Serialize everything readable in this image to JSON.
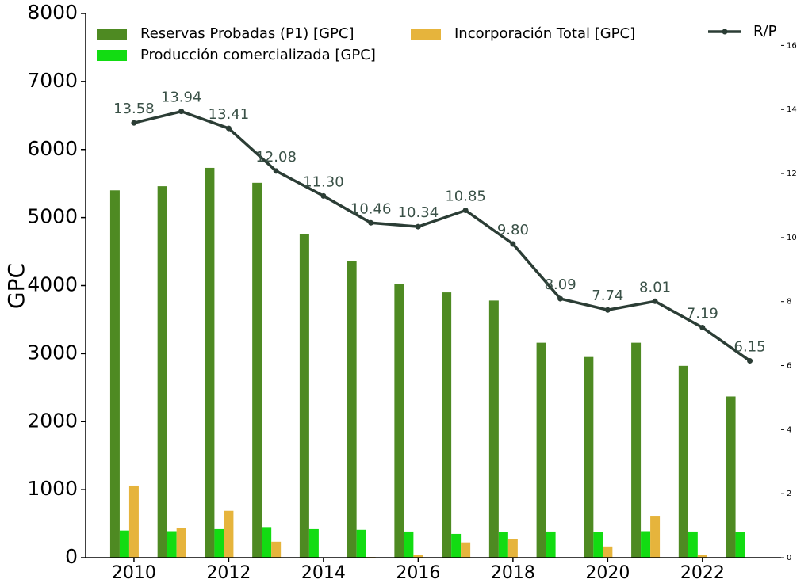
{
  "chart_data": {
    "type": "bar",
    "y_label": "GPC",
    "x": [
      2010,
      2011,
      2012,
      2013,
      2014,
      2015,
      2016,
      2017,
      2018,
      2019,
      2020,
      2021,
      2022,
      2023
    ],
    "xlim": [
      2008.98,
      2023.66
    ],
    "xticks": [
      2010,
      2012,
      2014,
      2016,
      2018,
      2020,
      2022
    ],
    "ylim": [
      0,
      8000
    ],
    "yticks": [
      0,
      1000,
      2000,
      3000,
      4000,
      5000,
      6000,
      7000,
      8000
    ],
    "y2lim": [
      0,
      17
    ],
    "y2ticks": [
      0,
      2,
      4,
      6,
      8,
      10,
      12,
      14,
      16
    ],
    "series": [
      {
        "name": "Reservas Probadas (P1) [GPC]",
        "color": "#4e8a22",
        "values": [
          5400,
          5460,
          5730,
          5510,
          4760,
          4360,
          4020,
          3900,
          3780,
          3160,
          2950,
          3160,
          2820,
          2370
        ]
      },
      {
        "name": "Producción comercializada [GPC]",
        "color": "#12dc12",
        "values": [
          400,
          390,
          420,
          450,
          420,
          410,
          385,
          350,
          380,
          385,
          375,
          390,
          385,
          380
        ]
      },
      {
        "name": "Incorporación Total [GPC]",
        "color": "#e6b43c",
        "values": [
          1060,
          440,
          690,
          235,
          0,
          10,
          45,
          225,
          270,
          0,
          165,
          605,
          40,
          0
        ]
      },
      {
        "name": "R/P",
        "type": "line",
        "axis": "y2",
        "color": "#2b3d35",
        "values": [
          13.58,
          13.94,
          13.41,
          12.08,
          11.3,
          10.46,
          10.34,
          10.85,
          9.8,
          8.09,
          7.74,
          8.01,
          7.19,
          6.15
        ],
        "value_labels": [
          "13.58",
          "13.94",
          "13.41",
          "12.08",
          "11.30",
          "10.46",
          "10.34",
          "10.85",
          "9.80",
          "8.09",
          "7.74",
          "8.01",
          "7.19",
          "6.15"
        ]
      }
    ]
  }
}
